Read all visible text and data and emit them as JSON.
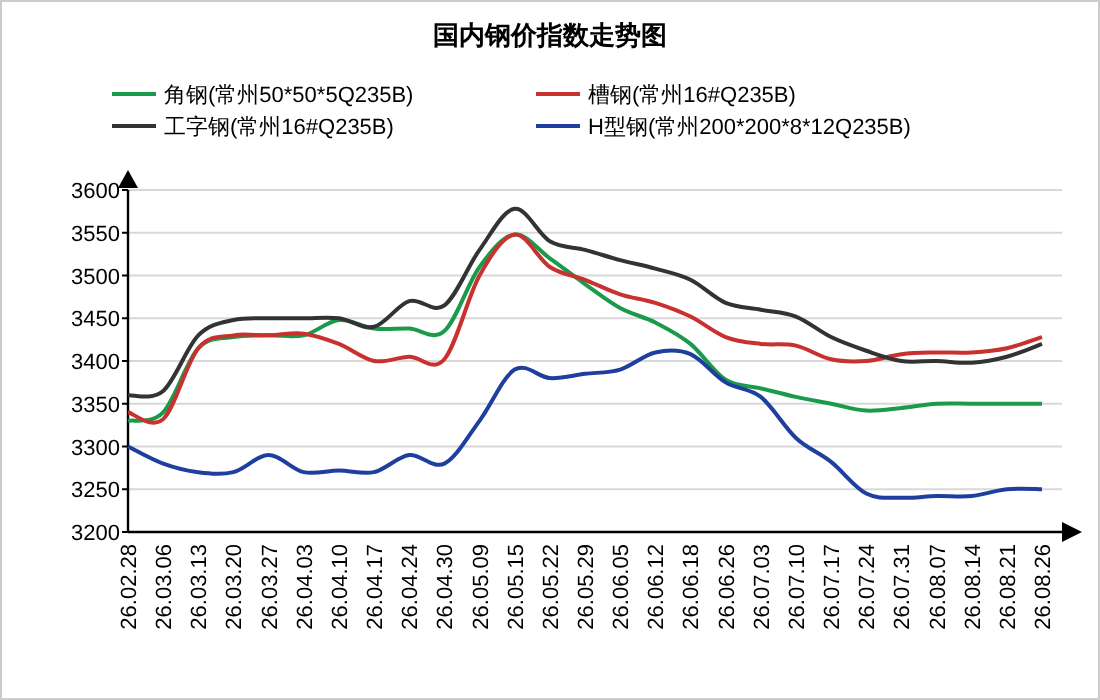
{
  "chart_data": {
    "type": "line",
    "title": "国内钢价指数走势图",
    "categories": [
      "26.02.28",
      "26.03.06",
      "26.03.13",
      "26.03.20",
      "26.03.27",
      "26.04.03",
      "26.04.10",
      "26.04.17",
      "26.04.24",
      "26.04.30",
      "26.05.09",
      "26.05.15",
      "26.05.22",
      "26.05.29",
      "26.06.05",
      "26.06.12",
      "26.06.18",
      "26.06.26",
      "26.07.03",
      "26.07.10",
      "26.07.17",
      "26.07.24",
      "26.07.31",
      "26.08.07",
      "26.08.14",
      "26.08.21",
      "26.08.26"
    ],
    "series": [
      {
        "name": "角钢(常州50*50*5Q235B)",
        "color": "#1a9b4b",
        "values": [
          3330,
          3340,
          3415,
          3428,
          3430,
          3430,
          3448,
          3438,
          3438,
          3435,
          3510,
          3548,
          3520,
          3490,
          3462,
          3445,
          3420,
          3378,
          3368,
          3358,
          3350,
          3342,
          3345,
          3350,
          3350,
          3350,
          3350
        ]
      },
      {
        "name": "槽钢(常州16#Q235B)",
        "color": "#c8312f",
        "values": [
          3340,
          3332,
          3415,
          3430,
          3430,
          3432,
          3420,
          3400,
          3405,
          3402,
          3500,
          3548,
          3510,
          3495,
          3478,
          3468,
          3452,
          3428,
          3420,
          3418,
          3402,
          3400,
          3408,
          3410,
          3410,
          3415,
          3428
        ]
      },
      {
        "name": "工字钢(常州16#Q235B)",
        "color": "#333333",
        "values": [
          3360,
          3365,
          3430,
          3448,
          3450,
          3450,
          3450,
          3440,
          3470,
          3465,
          3530,
          3578,
          3540,
          3530,
          3518,
          3508,
          3495,
          3468,
          3460,
          3452,
          3428,
          3412,
          3400,
          3400,
          3398,
          3405,
          3420
        ]
      },
      {
        "name": "H型钢(常州200*200*8*12Q235B)",
        "color": "#1f3f9f",
        "values": [
          3300,
          3280,
          3270,
          3270,
          3290,
          3270,
          3272,
          3270,
          3290,
          3280,
          3330,
          3390,
          3380,
          3385,
          3390,
          3410,
          3408,
          3375,
          3358,
          3310,
          3282,
          3245,
          3240,
          3242,
          3242,
          3250,
          3250
        ]
      }
    ],
    "ylim": [
      3200,
      3600
    ],
    "yticks": [
      3200,
      3250,
      3300,
      3350,
      3400,
      3450,
      3500,
      3550,
      3600
    ],
    "grid": "y",
    "legend": "top",
    "marker": "none",
    "line_style": "solid"
  }
}
